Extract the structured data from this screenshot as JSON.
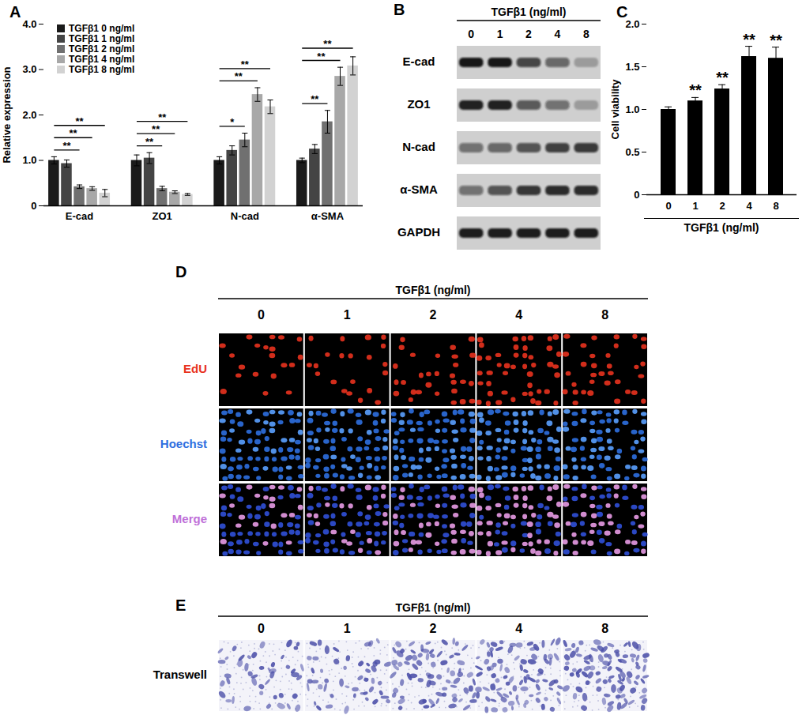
{
  "chart_data": [
    {
      "type": "bar",
      "title": "A",
      "ylabel": "Relative expression",
      "categories": [
        "E-cad",
        "ZO1",
        "N-cad",
        "α-SMA"
      ],
      "series": [
        {
          "name": "TGFβ1 0 ng/ml",
          "color": "#1a1a1a",
          "values": [
            1.0,
            1.0,
            1.0,
            1.0
          ],
          "errors": [
            0.08,
            0.12,
            0.08,
            0.05
          ]
        },
        {
          "name": "TGFβ1 1 ng/ml",
          "color": "#444444",
          "values": [
            0.93,
            1.05,
            1.22,
            1.25
          ],
          "errors": [
            0.08,
            0.12,
            0.1,
            0.1
          ]
        },
        {
          "name": "TGFβ1 2 ng/ml",
          "color": "#707070",
          "values": [
            0.42,
            0.38,
            1.45,
            1.85
          ],
          "errors": [
            0.04,
            0.05,
            0.15,
            0.25
          ]
        },
        {
          "name": "TGFβ1 4 ng/ml",
          "color": "#a8a8a8",
          "values": [
            0.38,
            0.3,
            2.45,
            2.85
          ],
          "errors": [
            0.04,
            0.03,
            0.15,
            0.2
          ]
        },
        {
          "name": "TGFβ1 8 ng/ml",
          "color": "#d2d2d2",
          "values": [
            0.28,
            0.25,
            2.18,
            3.08
          ],
          "errors": [
            0.08,
            0.02,
            0.15,
            0.2
          ]
        }
      ],
      "ylim": [
        0,
        4
      ],
      "yticks": [
        0,
        {
          "value": 1,
          "label": "1.0"
        },
        {
          "value": 2,
          "label": "2.0"
        },
        {
          "value": 3,
          "label": "3.0"
        },
        {
          "value": 4,
          "label": "4.0"
        }
      ],
      "legend": "top-left",
      "annotations": [
        {
          "category": "E-cad",
          "from": "TGFβ1 0 ng/ml",
          "to": "TGFβ1 2 ng/ml",
          "text": "**"
        },
        {
          "category": "E-cad",
          "from": "TGFβ1 0 ng/ml",
          "to": "TGFβ1 4 ng/ml",
          "text": "**"
        },
        {
          "category": "E-cad",
          "from": "TGFβ1 0 ng/ml",
          "to": "TGFβ1 8 ng/ml",
          "text": "**"
        },
        {
          "category": "ZO1",
          "from": "TGFβ1 0 ng/ml",
          "to": "TGFβ1 2 ng/ml",
          "text": "**"
        },
        {
          "category": "ZO1",
          "from": "TGFβ1 0 ng/ml",
          "to": "TGFβ1 4 ng/ml",
          "text": "**"
        },
        {
          "category": "ZO1",
          "from": "TGFβ1 0 ng/ml",
          "to": "TGFβ1 8 ng/ml",
          "text": "**"
        },
        {
          "category": "N-cad",
          "from": "TGFβ1 0 ng/ml",
          "to": "TGFβ1 2 ng/ml",
          "text": "*"
        },
        {
          "category": "N-cad",
          "from": "TGFβ1 0 ng/ml",
          "to": "TGFβ1 4 ng/ml",
          "text": "**"
        },
        {
          "category": "N-cad",
          "from": "TGFβ1 0 ng/ml",
          "to": "TGFβ1 8 ng/ml",
          "text": "**"
        },
        {
          "category": "α-SMA",
          "from": "TGFβ1 0 ng/ml",
          "to": "TGFβ1 2 ng/ml",
          "text": "**"
        },
        {
          "category": "α-SMA",
          "from": "TGFβ1 0 ng/ml",
          "to": "TGFβ1 4 ng/ml",
          "text": "**"
        },
        {
          "category": "α-SMA",
          "from": "TGFβ1 0 ng/ml",
          "to": "TGFβ1 8 ng/ml",
          "text": "**"
        }
      ]
    },
    {
      "type": "bar",
      "title": "C",
      "ylabel": "Cell viability",
      "xlabel": "TGFβ1 (ng/ml)",
      "categories": [
        "0",
        "1",
        "2",
        "4",
        "8"
      ],
      "values": [
        1.0,
        1.1,
        1.24,
        1.62,
        1.6
      ],
      "errors": [
        0.03,
        0.04,
        0.05,
        0.12,
        0.13
      ],
      "color": "#000000",
      "ylim": [
        0,
        2
      ],
      "yticks": [
        0,
        0.5,
        {
          "value": 1,
          "label": "1.0"
        },
        1.5,
        {
          "value": 2,
          "label": "2.0"
        }
      ],
      "annotations": [
        null,
        "**",
        "**",
        "**",
        "**"
      ]
    }
  ],
  "blot": {
    "label": "B",
    "title": "TGFβ1 (ng/ml)",
    "lanes": [
      "0",
      "1",
      "2",
      "4",
      "8"
    ],
    "rows": [
      {
        "name": "E-cad",
        "intensity": [
          0.95,
          0.95,
          0.72,
          0.55,
          0.25
        ]
      },
      {
        "name": "ZO1",
        "intensity": [
          0.9,
          0.9,
          0.62,
          0.5,
          0.25
        ]
      },
      {
        "name": "N-cad",
        "intensity": [
          0.5,
          0.55,
          0.65,
          0.75,
          0.78
        ]
      },
      {
        "name": "α-SMA",
        "intensity": [
          0.5,
          0.65,
          0.8,
          0.85,
          0.85
        ]
      },
      {
        "name": "GAPDH",
        "intensity": [
          0.92,
          0.92,
          0.92,
          0.92,
          0.92
        ]
      }
    ]
  },
  "edu": {
    "label": "D",
    "title": "TGFβ1 (ng/ml)",
    "columns": [
      "0",
      "1",
      "2",
      "4",
      "8"
    ],
    "rows": [
      {
        "name": "EdU",
        "color": "#e8321e"
      },
      {
        "name": "Hoechst",
        "color": "#2e6fe0"
      },
      {
        "name": "Merge",
        "color": "#c070d8"
      }
    ],
    "positive_fraction": [
      0.25,
      0.3,
      0.4,
      0.55,
      0.5
    ]
  },
  "transwell": {
    "label": "E",
    "title": "TGFβ1 (ng/ml)",
    "columns": [
      "0",
      "1",
      "2",
      "4",
      "8"
    ],
    "row": "Transwell",
    "density": [
      0.3,
      0.4,
      0.45,
      0.6,
      0.65
    ]
  }
}
